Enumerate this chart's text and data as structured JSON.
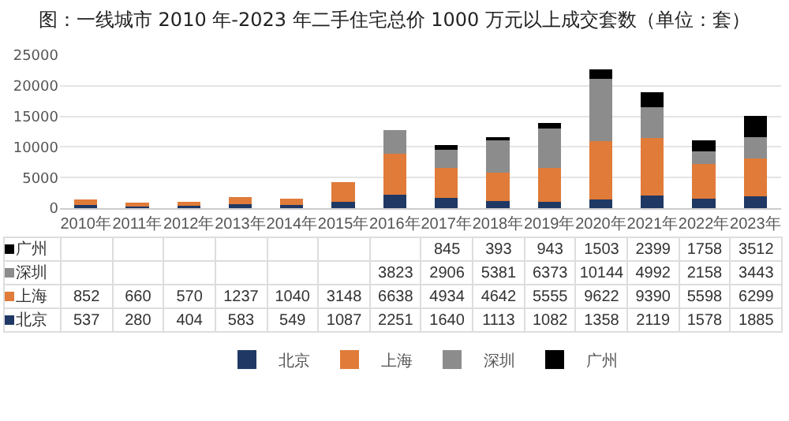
{
  "chart_data": {
    "type": "bar",
    "title": "图：一线城市 2010 年-2023 年二手住宅总价 1000 万元以上成交套数（单位：套）",
    "categories": [
      "2010年",
      "2011年",
      "2012年",
      "2013年",
      "2014年",
      "2015年",
      "2016年",
      "2017年",
      "2018年",
      "2019年",
      "2020年",
      "2021年",
      "2022年",
      "2023年"
    ],
    "series": [
      {
        "name": "北京",
        "color": "#1f3864",
        "values": [
          537,
          280,
          404,
          583,
          549,
          1087,
          2251,
          1640,
          1113,
          1082,
          1358,
          2119,
          1578,
          1885
        ]
      },
      {
        "name": "上海",
        "color": "#e07b39",
        "values": [
          852,
          660,
          570,
          1237,
          1040,
          3148,
          6638,
          4934,
          4642,
          5555,
          9622,
          9390,
          5598,
          6299
        ]
      },
      {
        "name": "深圳",
        "color": "#8c8c8c",
        "values": [
          null,
          null,
          null,
          null,
          null,
          null,
          3823,
          2906,
          5381,
          6373,
          10144,
          4992,
          2158,
          3443
        ]
      },
      {
        "name": "广州",
        "color": "#000000",
        "values": [
          null,
          null,
          null,
          null,
          null,
          null,
          null,
          845,
          393,
          943,
          1503,
          2399,
          1758,
          3512
        ]
      }
    ],
    "stacked": true,
    "ylim": [
      0,
      25000
    ],
    "yticks": [
      0,
      5000,
      10000,
      15000,
      20000,
      25000
    ],
    "grid": "y",
    "legend": "bottom",
    "data_labels": true
  }
}
